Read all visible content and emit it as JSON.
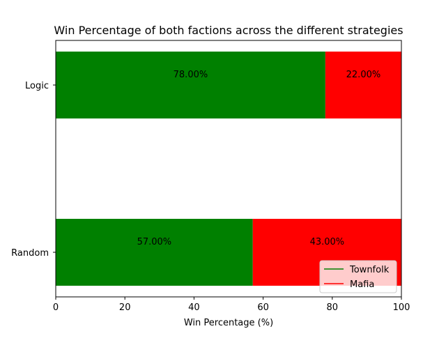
{
  "chart_data": {
    "type": "bar",
    "orientation": "horizontal",
    "stacked": true,
    "title": "Win Percentage of both factions across the different strategies",
    "xlabel": "Win Percentage (%)",
    "ylabel": "",
    "categories": [
      "Random",
      "Logic"
    ],
    "series": [
      {
        "name": "Townfolk",
        "values": [
          57.0,
          78.0
        ],
        "color": "#008000",
        "labels": [
          "57.00%",
          "78.00%"
        ]
      },
      {
        "name": "Mafia",
        "values": [
          43.0,
          22.0
        ],
        "color": "#ff0000",
        "labels": [
          "43.00%",
          "22.00%"
        ]
      }
    ],
    "xlim": [
      0,
      100
    ],
    "xticks": [
      0,
      20,
      40,
      60,
      80,
      100
    ],
    "xtick_labels": [
      "0",
      "20",
      "40",
      "60",
      "80",
      "100"
    ],
    "grid": false,
    "legend": {
      "placement": "lower-right"
    }
  }
}
